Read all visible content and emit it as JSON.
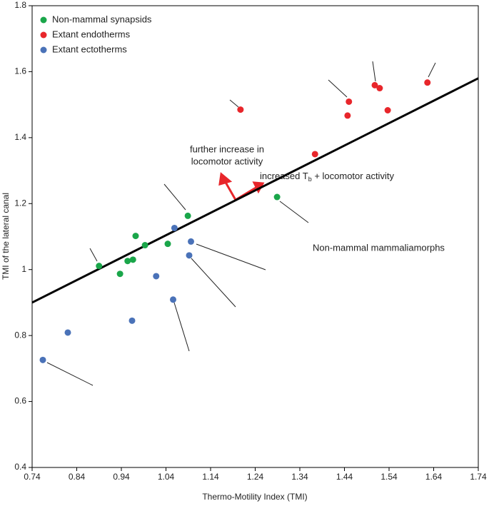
{
  "chart_data": {
    "type": "scatter",
    "xlabel": "Thermo-Motility Index (TMI)",
    "ylabel": "TMI of the lateral canal",
    "xlim": [
      0.74,
      1.74
    ],
    "xticks": [
      0.74,
      0.84,
      0.94,
      1.04,
      1.14,
      1.24,
      1.34,
      1.44,
      1.54,
      1.64,
      1.74
    ],
    "ylim": [
      0.4,
      1.8
    ],
    "yticks": [
      0.4,
      0.6,
      0.8,
      1,
      1.2,
      1.4,
      1.6,
      1.8
    ],
    "legend": "upper left",
    "series": [
      {
        "name": "Non-mammal synapsids",
        "color": "#1aa64a",
        "x": [
          0.89,
          0.937,
          0.954,
          0.966,
          0.972,
          0.993,
          1.044,
          1.089,
          1.289
        ],
        "values": [
          1.011,
          0.987,
          1.026,
          1.03,
          1.102,
          1.074,
          1.078,
          1.163,
          1.22
        ]
      },
      {
        "name": "Extant endotherms",
        "color": "#e8262b",
        "x": [
          1.207,
          1.45,
          1.447,
          1.508,
          1.519,
          1.537,
          1.374,
          1.626
        ],
        "values": [
          1.485,
          1.509,
          1.467,
          1.559,
          1.55,
          1.483,
          1.35,
          1.567
        ]
      },
      {
        "name": "Extant ectotherms",
        "color": "#4a72b8",
        "x": [
          0.764,
          0.82,
          0.964,
          1.018,
          1.056,
          1.059,
          1.096,
          1.092
        ],
        "values": [
          0.726,
          0.809,
          0.845,
          0.98,
          0.909,
          1.126,
          1.085,
          1.043
        ]
      }
    ],
    "trend_line": {
      "x": [
        0.74,
        1.74
      ],
      "values": [
        0.9,
        1.58
      ]
    },
    "annotations": [
      {
        "lines": [
          "further increase in",
          "locomotor activity"
        ]
      },
      {
        "parts": [
          "increased T",
          "b",
          " + locomotor activity"
        ]
      },
      {
        "text": "Non-mammal mammaliamorphs"
      }
    ]
  }
}
